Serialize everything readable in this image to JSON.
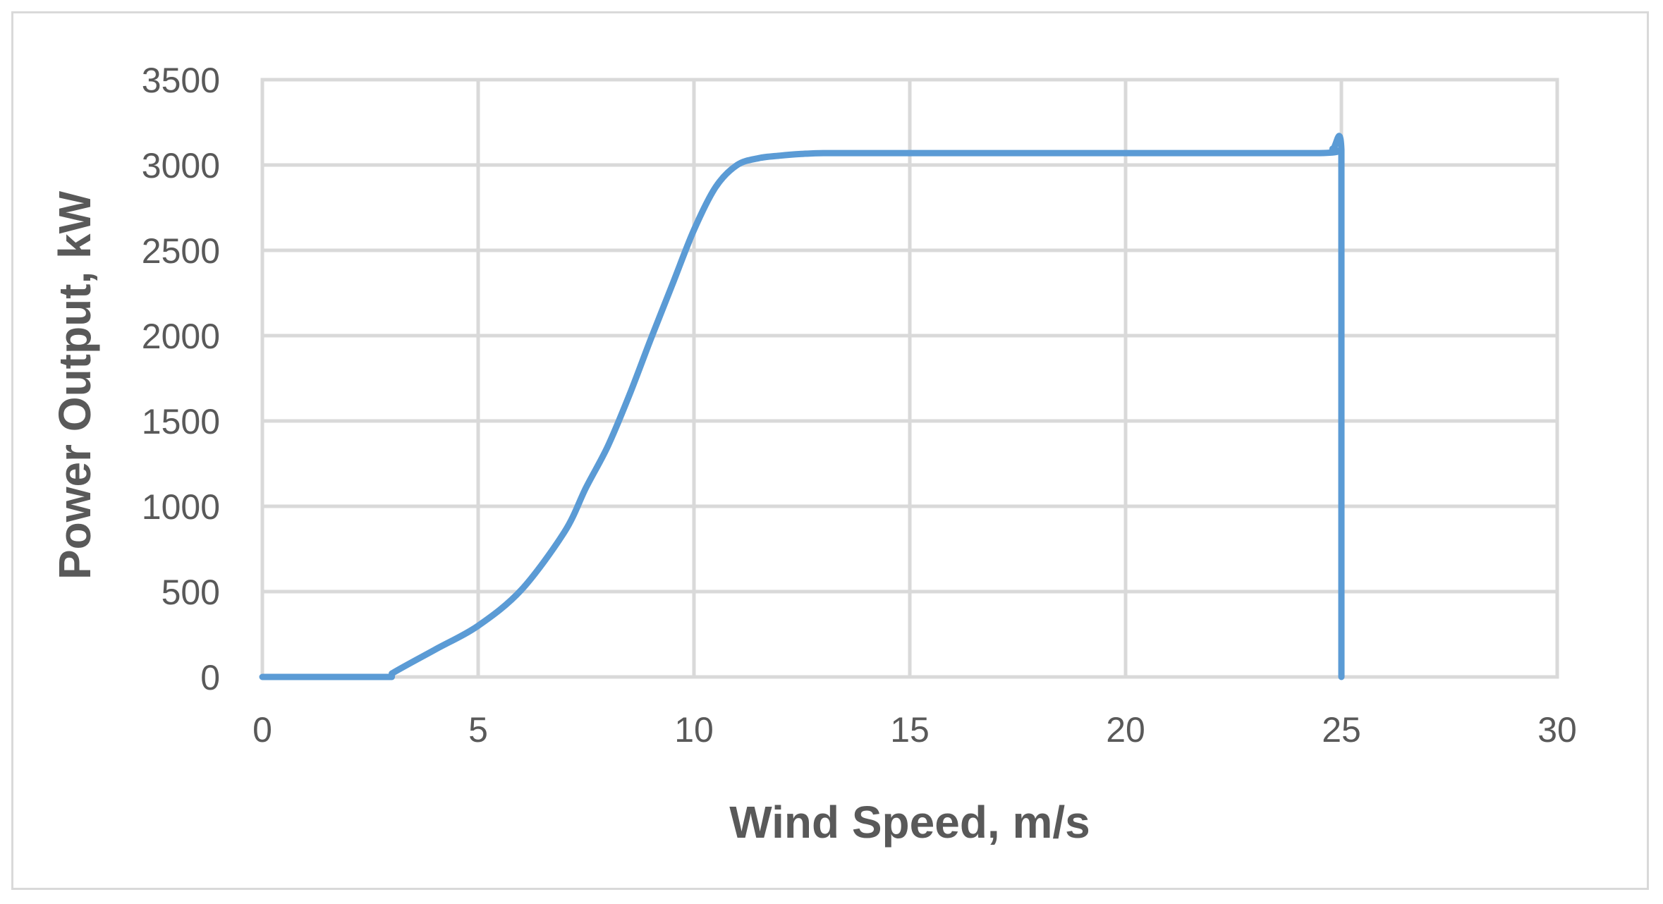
{
  "chart_data": {
    "type": "line",
    "title": "",
    "xlabel": "Wind Speed, m/s",
    "ylabel": "Power Output, kW",
    "xlim": [
      0,
      30
    ],
    "ylim": [
      0,
      3500
    ],
    "xticks": [
      0,
      5,
      10,
      15,
      20,
      25,
      30
    ],
    "yticks": [
      0,
      500,
      1000,
      1500,
      2000,
      2500,
      3000,
      3500
    ],
    "xtick_labels": [
      "0",
      "5",
      "10",
      "15",
      "20",
      "25",
      "30"
    ],
    "ytick_labels": [
      "0",
      "500",
      "1000",
      "1500",
      "2000",
      "2500",
      "3000",
      "3500"
    ],
    "grid": true,
    "legend": "none",
    "series": [
      {
        "color": "#5b9bd5",
        "x": [
          0,
          3,
          3,
          4,
          5,
          6,
          7,
          7.5,
          8,
          8.5,
          9,
          9.5,
          10,
          10.5,
          11,
          11.5,
          12,
          12.5,
          13,
          14,
          15,
          20,
          24.5,
          24.8,
          25,
          25,
          25
        ],
        "y": [
          0,
          0,
          20,
          160,
          300,
          510,
          850,
          1110,
          1350,
          1650,
          1980,
          2300,
          2620,
          2870,
          3000,
          3040,
          3055,
          3065,
          3070,
          3070,
          3070,
          3070,
          3070,
          3095,
          3090,
          2000,
          0
        ]
      }
    ]
  }
}
